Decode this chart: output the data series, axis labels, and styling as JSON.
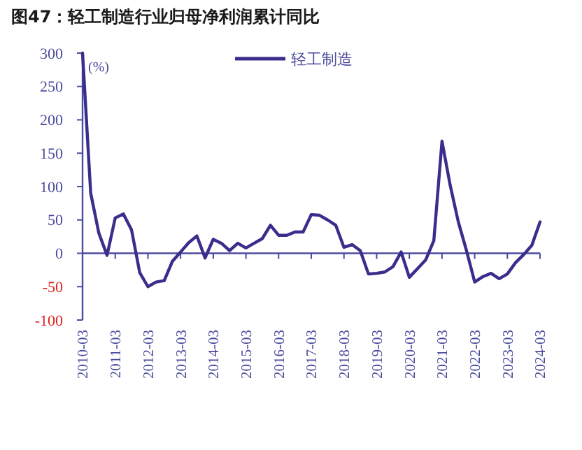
{
  "chart_data": {
    "type": "line",
    "title": "图47：轻工制造行业归母净利润累计同比",
    "ylabel": "(%)",
    "categories": [
      "2010-03",
      null,
      null,
      null,
      "2011-03",
      null,
      null,
      null,
      "2012-03",
      null,
      null,
      null,
      "2013-03",
      null,
      null,
      null,
      "2014-03",
      null,
      null,
      null,
      "2015-03",
      null,
      null,
      null,
      "2016-03",
      null,
      null,
      null,
      "2017-03",
      null,
      null,
      null,
      "2018-03",
      null,
      null,
      null,
      "2019-03",
      null,
      null,
      null,
      "2020-03",
      null,
      null,
      null,
      "2021-03",
      null,
      null,
      null,
      "2022-03",
      null,
      null,
      null,
      "2023-03",
      null,
      null,
      null,
      "2024-03"
    ],
    "series": [
      {
        "name": "轻工制造",
        "color": "#3b2d8c",
        "values": [
          300,
          90,
          30,
          -3,
          53,
          59,
          35,
          -29,
          -50,
          -43,
          -41,
          -12,
          2,
          16,
          26,
          -7,
          21,
          15,
          4,
          15,
          8,
          15,
          22,
          42,
          27,
          27,
          32,
          32,
          58,
          57,
          50,
          42,
          9,
          13,
          4,
          -31,
          -30,
          -28,
          -20,
          2,
          -36,
          -23,
          -10,
          19,
          168,
          102,
          47,
          4,
          -43,
          -35,
          -30,
          -38,
          -31,
          -14,
          -2,
          12,
          47
        ]
      }
    ],
    "ylim": [
      -100,
      300
    ],
    "yticks": [
      -100,
      -50,
      0,
      50,
      100,
      150,
      200,
      250,
      300
    ],
    "ref_lines": [
      {
        "axis": "y",
        "value": 0
      }
    ],
    "legend": "top",
    "marker": "none",
    "line_style": "solid"
  }
}
